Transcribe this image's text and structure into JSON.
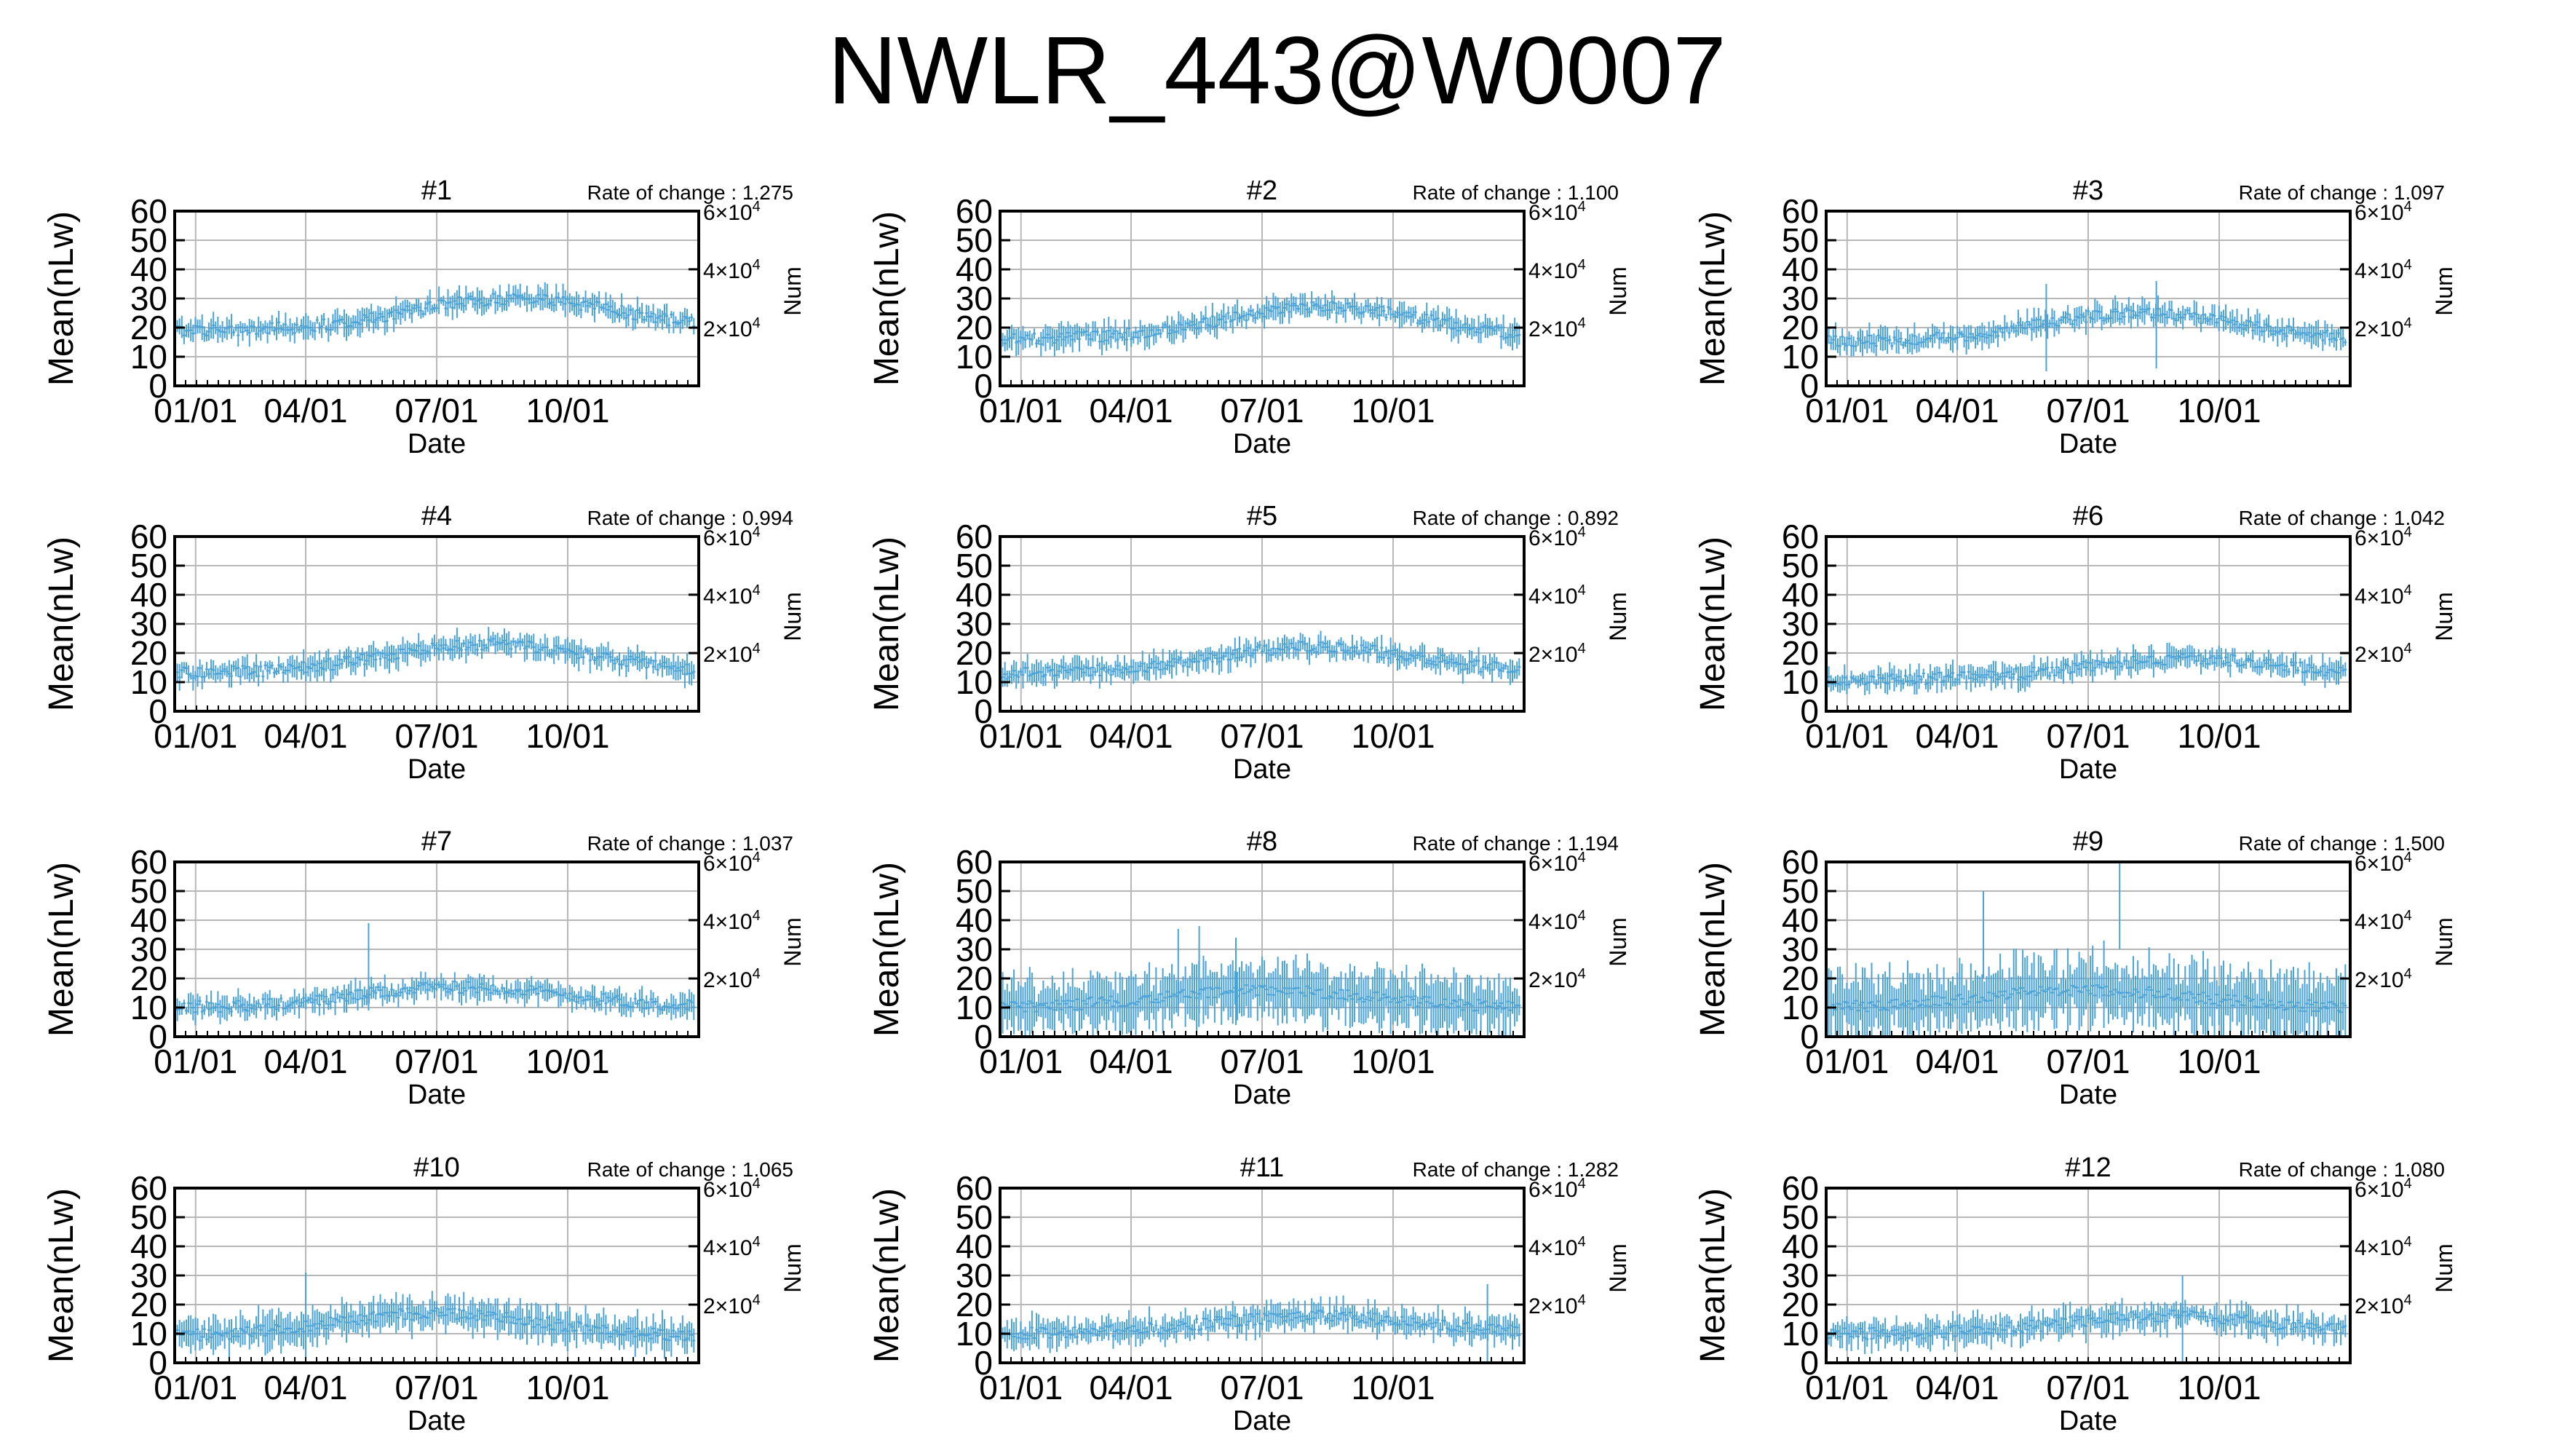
{
  "page": {
    "title": "NWLR_443@W0007"
  },
  "colors": {
    "series": "#4aa3d8",
    "axis": "#000000",
    "grid": "#b8b8b8"
  },
  "chart_data": [
    {
      "type": "line",
      "title": "#1",
      "rate_label": "Rate of change : 1.275",
      "base": 19,
      "peak": 11,
      "peak_pos": 0.65,
      "noise": 4,
      "spikes": [],
      "xlabel": "Date",
      "ylabel": "Mean(nLw)",
      "y2label": "Num",
      "yticks": [
        0,
        10,
        20,
        30,
        40,
        50,
        60
      ],
      "xticks": [
        "01/01",
        "04/01",
        "07/01",
        "10/01"
      ],
      "y2ticks": [
        {
          "base": "2×10",
          "exp": "4",
          "value": 0.333
        },
        {
          "base": "4×10",
          "exp": "4",
          "value": 0.667
        },
        {
          "base": "6×10",
          "exp": "4",
          "value": 1.0
        }
      ],
      "ylim": [
        0,
        60
      ],
      "grid": true
    },
    {
      "type": "line",
      "title": "#2",
      "rate_label": "Rate of change : 1.100",
      "base": 16,
      "peak": 11,
      "peak_pos": 0.62,
      "noise": 4,
      "spikes": [],
      "xlabel": "Date",
      "ylabel": "Mean(nLw)",
      "y2label": "Num",
      "yticks": [
        0,
        10,
        20,
        30,
        40,
        50,
        60
      ],
      "xticks": [
        "01/01",
        "04/01",
        "07/01",
        "10/01"
      ],
      "y2ticks": [
        {
          "base": "2×10",
          "exp": "4",
          "value": 0.333
        },
        {
          "base": "4×10",
          "exp": "4",
          "value": 0.667
        },
        {
          "base": "6×10",
          "exp": "4",
          "value": 1.0
        }
      ],
      "ylim": [
        0,
        60
      ],
      "grid": true
    },
    {
      "type": "line",
      "title": "#3",
      "rate_label": "Rate of change : 1.097",
      "base": 15,
      "peak": 10,
      "peak_pos": 0.6,
      "noise": 4,
      "spikes": [
        [
          0.42,
          35
        ],
        [
          0.63,
          36
        ]
      ],
      "xlabel": "Date",
      "ylabel": "Mean(nLw)",
      "y2label": "Num",
      "yticks": [
        0,
        10,
        20,
        30,
        40,
        50,
        60
      ],
      "xticks": [
        "01/01",
        "04/01",
        "07/01",
        "10/01"
      ],
      "y2ticks": [
        {
          "base": "2×10",
          "exp": "4",
          "value": 0.333
        },
        {
          "base": "4×10",
          "exp": "4",
          "value": 0.667
        },
        {
          "base": "6×10",
          "exp": "4",
          "value": 1.0
        }
      ],
      "ylim": [
        0,
        60
      ],
      "grid": true
    },
    {
      "type": "line",
      "title": "#4",
      "rate_label": "Rate of change : 0.994",
      "base": 13,
      "peak": 10,
      "peak_pos": 0.6,
      "noise": 4,
      "spikes": [],
      "xlabel": "Date",
      "ylabel": "Mean(nLw)",
      "y2label": "Num",
      "yticks": [
        0,
        10,
        20,
        30,
        40,
        50,
        60
      ],
      "xticks": [
        "01/01",
        "04/01",
        "07/01",
        "10/01"
      ],
      "y2ticks": [
        {
          "base": "2×10",
          "exp": "4",
          "value": 0.333
        },
        {
          "base": "4×10",
          "exp": "4",
          "value": 0.667
        },
        {
          "base": "6×10",
          "exp": "4",
          "value": 1.0
        }
      ],
      "ylim": [
        0,
        60
      ],
      "grid": true
    },
    {
      "type": "line",
      "title": "#5",
      "rate_label": "Rate of change : 0.892",
      "base": 13,
      "peak": 9,
      "peak_pos": 0.6,
      "noise": 4,
      "spikes": [],
      "xlabel": "Date",
      "ylabel": "Mean(nLw)",
      "y2label": "Num",
      "yticks": [
        0,
        10,
        20,
        30,
        40,
        50,
        60
      ],
      "xticks": [
        "01/01",
        "04/01",
        "07/01",
        "10/01"
      ],
      "y2ticks": [
        {
          "base": "2×10",
          "exp": "4",
          "value": 0.333
        },
        {
          "base": "4×10",
          "exp": "4",
          "value": 0.667
        },
        {
          "base": "6×10",
          "exp": "4",
          "value": 1.0
        }
      ],
      "ylim": [
        0,
        60
      ],
      "grid": true
    },
    {
      "type": "line",
      "title": "#6",
      "rate_label": "Rate of change : 1.042",
      "base": 11,
      "peak": 7,
      "peak_pos": 0.7,
      "noise": 4,
      "spikes": [],
      "xlabel": "Date",
      "ylabel": "Mean(nLw)",
      "y2label": "Num",
      "yticks": [
        0,
        10,
        20,
        30,
        40,
        50,
        60
      ],
      "xticks": [
        "01/01",
        "04/01",
        "07/01",
        "10/01"
      ],
      "y2ticks": [
        {
          "base": "2×10",
          "exp": "4",
          "value": 0.333
        },
        {
          "base": "4×10",
          "exp": "4",
          "value": 0.667
        },
        {
          "base": "6×10",
          "exp": "4",
          "value": 1.0
        }
      ],
      "ylim": [
        0,
        60
      ],
      "grid": true
    },
    {
      "type": "line",
      "title": "#7",
      "rate_label": "Rate of change : 1.037",
      "base": 10,
      "peak": 7,
      "peak_pos": 0.55,
      "noise": 4,
      "spikes": [
        [
          0.37,
          39
        ]
      ],
      "xlabel": "Date",
      "ylabel": "Mean(nLw)",
      "y2label": "Num",
      "yticks": [
        0,
        10,
        20,
        30,
        40,
        50,
        60
      ],
      "xticks": [
        "01/01",
        "04/01",
        "07/01",
        "10/01"
      ],
      "y2ticks": [
        {
          "base": "2×10",
          "exp": "4",
          "value": 0.333
        },
        {
          "base": "4×10",
          "exp": "4",
          "value": 0.667
        },
        {
          "base": "6×10",
          "exp": "4",
          "value": 1.0
        }
      ],
      "ylim": [
        0,
        60
      ],
      "grid": true
    },
    {
      "type": "line",
      "title": "#8",
      "rate_label": "Rate of change : 1.194",
      "base": 10,
      "peak": 6,
      "peak_pos": 0.5,
      "noise": 10,
      "spikes": [
        [
          0.34,
          37
        ],
        [
          0.38,
          38
        ],
        [
          0.45,
          34
        ]
      ],
      "xlabel": "Date",
      "ylabel": "Mean(nLw)",
      "y2label": "Num",
      "yticks": [
        0,
        10,
        20,
        30,
        40,
        50,
        60
      ],
      "xticks": [
        "01/01",
        "04/01",
        "07/01",
        "10/01"
      ],
      "y2ticks": [
        {
          "base": "2×10",
          "exp": "4",
          "value": 0.333
        },
        {
          "base": "4×10",
          "exp": "4",
          "value": 0.667
        },
        {
          "base": "6×10",
          "exp": "4",
          "value": 1.0
        }
      ],
      "ylim": [
        0,
        60
      ],
      "grid": true
    },
    {
      "type": "line",
      "title": "#9",
      "rate_label": "Rate of change : 1.500",
      "base": 10,
      "peak": 6,
      "peak_pos": 0.5,
      "noise": 12,
      "spikes": [
        [
          0.3,
          50
        ],
        [
          0.56,
          60
        ],
        [
          0.53,
          33
        ]
      ],
      "xlabel": "Date",
      "ylabel": "Mean(nLw)",
      "y2label": "Num",
      "yticks": [
        0,
        10,
        20,
        30,
        40,
        50,
        60
      ],
      "xticks": [
        "01/01",
        "04/01",
        "07/01",
        "10/01"
      ],
      "y2ticks": [
        {
          "base": "2×10",
          "exp": "4",
          "value": 0.333
        },
        {
          "base": "4×10",
          "exp": "4",
          "value": 0.667
        },
        {
          "base": "6×10",
          "exp": "4",
          "value": 1.0
        }
      ],
      "ylim": [
        0,
        60
      ],
      "grid": true
    },
    {
      "type": "line",
      "title": "#10",
      "rate_label": "Rate of change : 1.065",
      "base": 9,
      "peak": 8,
      "peak_pos": 0.5,
      "noise": 6,
      "spikes": [
        [
          0.25,
          31
        ]
      ],
      "xlabel": "Date",
      "ylabel": "Mean(nLw)",
      "y2label": "Num",
      "yticks": [
        0,
        10,
        20,
        30,
        40,
        50,
        60
      ],
      "xticks": [
        "01/01",
        "04/01",
        "07/01",
        "10/01"
      ],
      "y2ticks": [
        {
          "base": "2×10",
          "exp": "4",
          "value": 0.333
        },
        {
          "base": "4×10",
          "exp": "4",
          "value": 0.667
        },
        {
          "base": "6×10",
          "exp": "4",
          "value": 1.0
        }
      ],
      "ylim": [
        0,
        60
      ],
      "grid": true
    },
    {
      "type": "line",
      "title": "#11",
      "rate_label": "Rate of change : 1.282",
      "base": 10,
      "peak": 6,
      "peak_pos": 0.6,
      "noise": 5,
      "spikes": [
        [
          0.93,
          27
        ]
      ],
      "xlabel": "Date",
      "ylabel": "Mean(nLw)",
      "y2label": "Num",
      "yticks": [
        0,
        10,
        20,
        30,
        40,
        50,
        60
      ],
      "xticks": [
        "01/01",
        "04/01",
        "07/01",
        "10/01"
      ],
      "y2ticks": [
        {
          "base": "2×10",
          "exp": "4",
          "value": 0.333
        },
        {
          "base": "4×10",
          "exp": "4",
          "value": 0.667
        },
        {
          "base": "6×10",
          "exp": "4",
          "value": 1.0
        }
      ],
      "ylim": [
        0,
        60
      ],
      "grid": true
    },
    {
      "type": "line",
      "title": "#12",
      "rate_label": "Rate of change : 1.080",
      "base": 10,
      "peak": 6,
      "peak_pos": 0.65,
      "noise": 5,
      "spikes": [
        [
          0.68,
          30
        ]
      ],
      "xlabel": "Date",
      "ylabel": "Mean(nLw)",
      "y2label": "Num",
      "yticks": [
        0,
        10,
        20,
        30,
        40,
        50,
        60
      ],
      "xticks": [
        "01/01",
        "04/01",
        "07/01",
        "10/01"
      ],
      "y2ticks": [
        {
          "base": "2×10",
          "exp": "4",
          "value": 0.333
        },
        {
          "base": "4×10",
          "exp": "4",
          "value": 0.667
        },
        {
          "base": "6×10",
          "exp": "4",
          "value": 1.0
        }
      ],
      "ylim": [
        0,
        60
      ],
      "grid": true
    }
  ]
}
